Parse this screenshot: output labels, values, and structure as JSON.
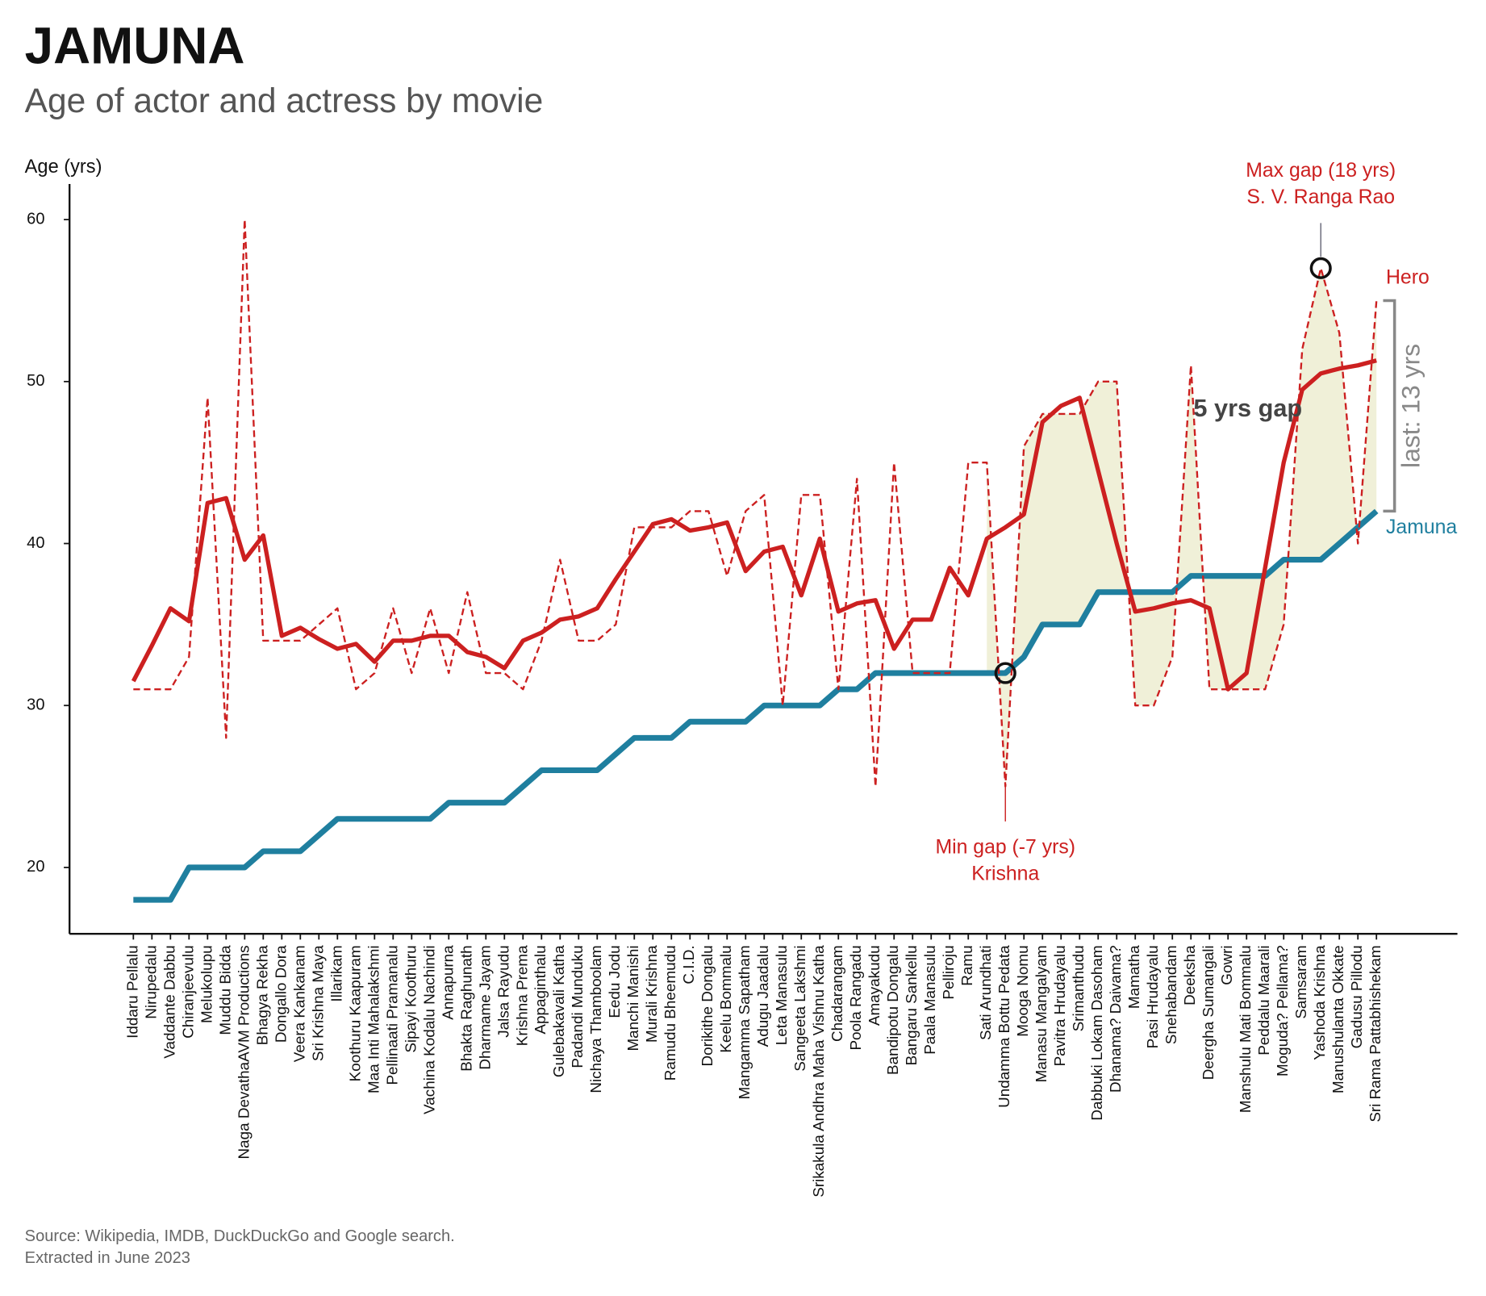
{
  "chart_data": {
    "type": "line",
    "title": "JAMUNA",
    "subtitle": "Age of actor and actress by movie",
    "y_label": "Age (yrs)",
    "source": [
      "Source: Wikipedia, IMDB, DuckDuckGo and Google search.",
      "Extracted in June 2023"
    ],
    "categories": [
      "Iddaru Pellalu",
      "Nirupedalu",
      "Vaddante Dabbu",
      "Chiranjeevulu",
      "Melukolupu",
      "Muddu Bidda",
      "Naga DevathaAVM Productions",
      "Bhagya Rekha",
      "Dongallo Dora",
      "Veera Kankanam",
      "Sri Krishna Maya",
      "Illarikam",
      "Koothuru Kaapuram",
      "Maa Inti Mahalakshmi",
      "Pellinaati Pramanalu",
      "Sipayi Koothuru",
      "Vachina Kodalu Nachindi",
      "Annapurna",
      "Bhakta Raghunath",
      "Dharmame Jayam",
      "Jalsa Rayudu",
      "Krishna Prema",
      "Appaginthalu",
      "Gulebakavali Katha",
      "Padandi Munduku",
      "Nichaya Thamboolam",
      "Eedu Jodu",
      "Manchi Manishi",
      "Murali Krishna",
      "Ramudu Bheemudu",
      "C.I.D.",
      "Dorikithe Dongalu",
      "Keelu Bommalu",
      "Mangamma Sapatham",
      "Adugu Jaadalu",
      "Leta Manasulu",
      "Sangeeta Lakshmi",
      "Srikakula Andhra Maha Vishnu Katha",
      "Chadarangam",
      "Poola Rangadu",
      "Amayakudu",
      "Bandipotu Dongalu",
      "Bangaru Sankellu",
      "Paala Manasulu",
      "Pelliroju",
      "Ramu",
      "Sati Arundhati",
      "Undamma Bottu Pedata",
      "Mooga Nomu",
      "Manasu Mangalyam",
      "Pavitra Hrudayalu",
      "Srimanthudu",
      "Dabbuki Lokam Dasoham",
      "Dhanama? Daivama?",
      "Mamatha",
      "Pasi Hrudayalu",
      "Snehabandam",
      "Deeksha",
      "Deergha Sumangali",
      "Gowri",
      "Manshulu Mati Bommalu",
      "Peddalu Maarali",
      "Moguda? Pellama?",
      "Samsaram",
      "Yashoda Krishna",
      "Manushulanta Okkate",
      "Gadusu Pillodu",
      "Sri Rama Pattabhishekam"
    ],
    "series": [
      {
        "name": "Hero",
        "color": "#cc2020",
        "values": [
          31,
          31,
          31,
          33,
          49,
          28,
          60,
          34,
          34,
          34,
          35,
          36,
          31,
          32,
          36,
          32,
          36,
          32,
          37,
          32,
          32,
          31,
          34,
          39,
          34,
          34,
          35,
          41,
          41,
          41,
          42,
          42,
          38,
          42,
          43,
          30,
          43,
          43,
          31,
          44,
          25,
          45,
          32,
          32,
          32,
          45,
          45,
          25,
          46,
          48,
          48,
          48,
          50,
          50,
          30,
          30,
          33,
          51,
          31,
          31,
          31,
          31,
          35,
          52,
          57,
          53,
          40,
          55
        ],
        "trend": [
          31.5,
          33.7,
          36,
          35.2,
          42.5,
          42.8,
          39,
          40.5,
          34.3,
          34.8,
          34.1,
          33.5,
          33.8,
          32.7,
          34,
          34,
          34.3,
          34.3,
          33.3,
          33,
          32.3,
          34,
          34.5,
          35.3,
          35.5,
          36,
          37.8,
          39.5,
          41.2,
          41.5,
          40.8,
          41,
          41.3,
          38.3,
          39.5,
          39.8,
          36.8,
          40.3,
          35.8,
          36.3,
          36.5,
          33.5,
          35.3,
          35.3,
          38.5,
          36.8,
          40.3,
          41,
          41.8,
          47.5,
          48.5,
          49,
          44.5,
          40,
          35.8,
          36,
          36.3,
          36.5,
          36,
          31,
          32,
          38.5,
          45,
          49.5,
          50.5,
          50.8,
          51,
          51.3
        ]
      },
      {
        "name": "Jamuna",
        "color": "#1f7f9f",
        "values": [
          18,
          18,
          18,
          20,
          20,
          20,
          20,
          21,
          21,
          21,
          22,
          23,
          23,
          23,
          23,
          23,
          23,
          24,
          24,
          24,
          24,
          25,
          26,
          26,
          26,
          26,
          27,
          28,
          28,
          28,
          29,
          29,
          29,
          29,
          30,
          30,
          30,
          30,
          31,
          31,
          32,
          32,
          32,
          32,
          32,
          32,
          32,
          32,
          33,
          35,
          35,
          35,
          37,
          37,
          37,
          37,
          37,
          38,
          38,
          38,
          38,
          38,
          39,
          39,
          39,
          40,
          41,
          42
        ]
      }
    ],
    "shade": {
      "from": "Sati Arundhati",
      "color": "#f0f0d8"
    },
    "annotations": [
      {
        "text": [
          "Max gap (18 yrs)",
          "S. V. Ranga Rao"
        ],
        "at": "Yashoda Krishna",
        "series": "Hero",
        "color": "#cc2020"
      },
      {
        "text": [
          "Min gap (-7 yrs)",
          "Krishna"
        ],
        "at": "Undamma Bottu Pedata",
        "series": "Jamuna",
        "color": "#cc2020"
      }
    ],
    "gap_label": "5 yrs gap",
    "last_label": "last: 13 yrs",
    "ylim": [
      15.9,
      62.2
    ],
    "yticks": [
      20,
      30,
      40,
      50,
      60
    ]
  }
}
